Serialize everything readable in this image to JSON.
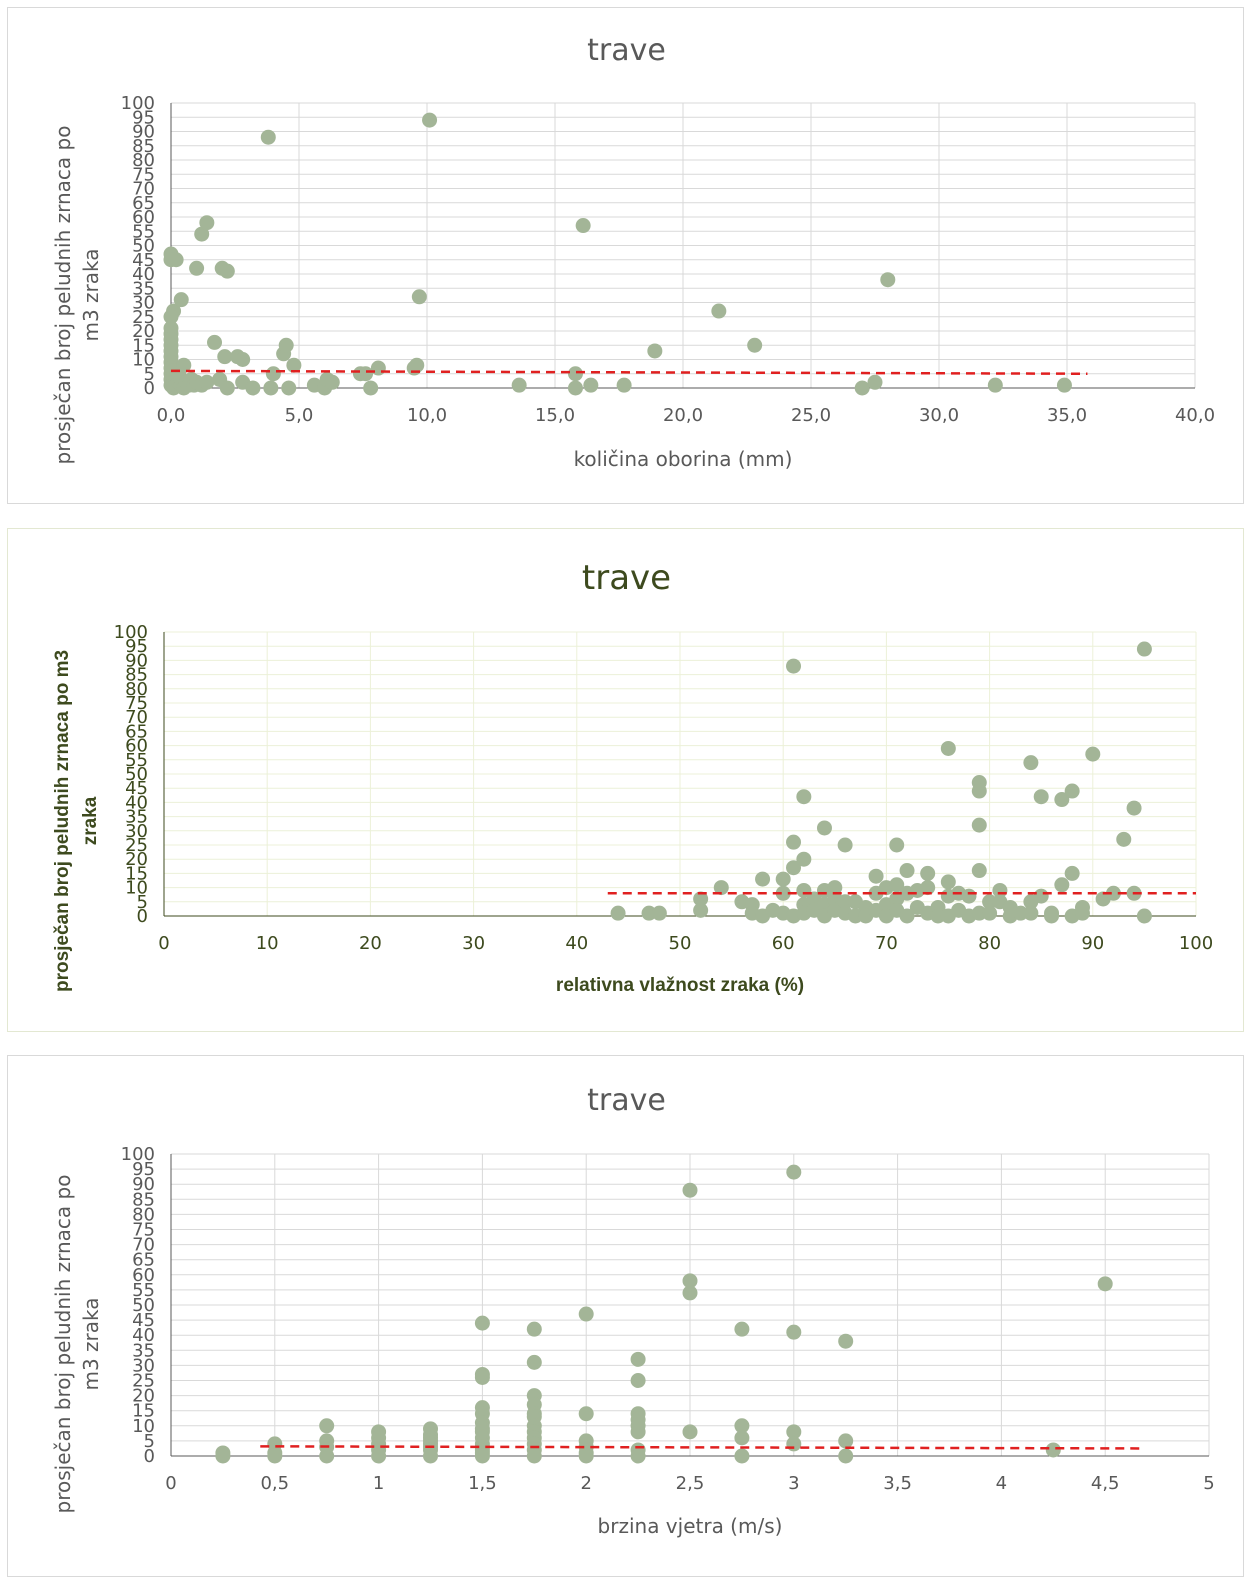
{
  "chart_data": [
    {
      "type": "scatter",
      "title": "trave",
      "xlabel": "količina oborina (mm)",
      "ylabel": "prosječan broj peludnih zrnaca po m3 zraka",
      "xlim": [
        0,
        40
      ],
      "ylim": [
        0,
        100
      ],
      "x_ticks": [
        "0,0",
        "5,0",
        "10,0",
        "15,0",
        "20,0",
        "25,0",
        "30,0",
        "35,0",
        "40,0"
      ],
      "y_ticks": [
        "0",
        "5",
        "10",
        "15",
        "20",
        "25",
        "30",
        "35",
        "40",
        "45",
        "50",
        "55",
        "60",
        "65",
        "70",
        "75",
        "80",
        "85",
        "90",
        "95",
        "100"
      ],
      "grid": true,
      "marker_color": "#a3b597",
      "trendline": {
        "style": "dashed",
        "color": "#e02020",
        "x": [
          0,
          35.8
        ],
        "y": [
          6.0,
          5.0
        ]
      },
      "points": [
        [
          0.0,
          47
        ],
        [
          0.0,
          45
        ],
        [
          0.2,
          45
        ],
        [
          0.1,
          27
        ],
        [
          0.0,
          25
        ],
        [
          0.0,
          21
        ],
        [
          0.0,
          19
        ],
        [
          0.0,
          17
        ],
        [
          0.0,
          15
        ],
        [
          0.0,
          13
        ],
        [
          0.0,
          11
        ],
        [
          0.0,
          9
        ],
        [
          0.0,
          7
        ],
        [
          0.0,
          5
        ],
        [
          0.0,
          3
        ],
        [
          0.0,
          1
        ],
        [
          0.1,
          6
        ],
        [
          0.1,
          4
        ],
        [
          0.1,
          2
        ],
        [
          0.1,
          0
        ],
        [
          0.2,
          3
        ],
        [
          0.2,
          1
        ],
        [
          0.3,
          5
        ],
        [
          0.3,
          2
        ],
        [
          0.4,
          1
        ],
        [
          0.4,
          3
        ],
        [
          0.5,
          0
        ],
        [
          0.5,
          8
        ],
        [
          0.6,
          2
        ],
        [
          0.7,
          1
        ],
        [
          0.8,
          3
        ],
        [
          0.9,
          1
        ],
        [
          1.0,
          2
        ],
        [
          1.2,
          1
        ],
        [
          1.4,
          2
        ],
        [
          0.4,
          31
        ],
        [
          1.0,
          42
        ],
        [
          1.2,
          54
        ],
        [
          1.4,
          58
        ],
        [
          1.7,
          16
        ],
        [
          2.0,
          42
        ],
        [
          2.1,
          11
        ],
        [
          2.2,
          41
        ],
        [
          1.9,
          3
        ],
        [
          2.2,
          0
        ],
        [
          2.6,
          11
        ],
        [
          2.8,
          10
        ],
        [
          2.8,
          2
        ],
        [
          3.2,
          0
        ],
        [
          3.8,
          88
        ],
        [
          3.9,
          0
        ],
        [
          4.0,
          5
        ],
        [
          4.4,
          12
        ],
        [
          4.5,
          15
        ],
        [
          4.6,
          0
        ],
        [
          4.8,
          8
        ],
        [
          5.6,
          1
        ],
        [
          6.0,
          0
        ],
        [
          6.1,
          3
        ],
        [
          6.3,
          2
        ],
        [
          7.4,
          5
        ],
        [
          7.6,
          5
        ],
        [
          7.8,
          0
        ],
        [
          8.1,
          7
        ],
        [
          9.5,
          7
        ],
        [
          9.6,
          8
        ],
        [
          9.7,
          32
        ],
        [
          10.1,
          94
        ],
        [
          13.6,
          1
        ],
        [
          15.8,
          5
        ],
        [
          15.8,
          0
        ],
        [
          16.1,
          57
        ],
        [
          16.4,
          1
        ],
        [
          17.7,
          1
        ],
        [
          18.9,
          13
        ],
        [
          21.4,
          27
        ],
        [
          22.8,
          15
        ],
        [
          27.0,
          0
        ],
        [
          27.5,
          2
        ],
        [
          28.0,
          38
        ],
        [
          32.2,
          1
        ],
        [
          34.9,
          1
        ]
      ]
    },
    {
      "type": "scatter",
      "title": "trave",
      "xlabel": "relativna vlažnost zraka (%)",
      "ylabel": "prosječan broj peludnih zrnaca po m3 zraka",
      "xlim": [
        0,
        100
      ],
      "ylim": [
        0,
        100
      ],
      "x_ticks": [
        "0",
        "10",
        "20",
        "30",
        "40",
        "50",
        "60",
        "70",
        "80",
        "90",
        "100"
      ],
      "y_ticks": [
        "0",
        "5",
        "10",
        "15",
        "20",
        "25",
        "30",
        "35",
        "40",
        "45",
        "50",
        "55",
        "60",
        "65",
        "70",
        "75",
        "80",
        "85",
        "90",
        "95",
        "100"
      ],
      "grid": true,
      "marker_color": "#a3b597",
      "trendline": {
        "style": "dashed",
        "color": "#e02020",
        "x": [
          43,
          100
        ],
        "y": [
          8.0,
          8.0
        ]
      },
      "points": [
        [
          44,
          1
        ],
        [
          47,
          1
        ],
        [
          48,
          1
        ],
        [
          52,
          6
        ],
        [
          52,
          2
        ],
        [
          54,
          10
        ],
        [
          56,
          5
        ],
        [
          57,
          4
        ],
        [
          57,
          1
        ],
        [
          58,
          0
        ],
        [
          58,
          13
        ],
        [
          59,
          2
        ],
        [
          60,
          13
        ],
        [
          60,
          8
        ],
        [
          60,
          1
        ],
        [
          61,
          88
        ],
        [
          61,
          26
        ],
        [
          61,
          17
        ],
        [
          61,
          0
        ],
        [
          62,
          42
        ],
        [
          62,
          20
        ],
        [
          62,
          9
        ],
        [
          62,
          4
        ],
        [
          62,
          1
        ],
        [
          63,
          6
        ],
        [
          63,
          2
        ],
        [
          64,
          31
        ],
        [
          64,
          9
        ],
        [
          64,
          4
        ],
        [
          64,
          0
        ],
        [
          65,
          10
        ],
        [
          65,
          6
        ],
        [
          65,
          2
        ],
        [
          66,
          25
        ],
        [
          66,
          5
        ],
        [
          66,
          1
        ],
        [
          67,
          5
        ],
        [
          67,
          0
        ],
        [
          68,
          3
        ],
        [
          68,
          0
        ],
        [
          69,
          14
        ],
        [
          69,
          8
        ],
        [
          69,
          2
        ],
        [
          70,
          10
        ],
        [
          70,
          4
        ],
        [
          70,
          0
        ],
        [
          71,
          25
        ],
        [
          71,
          11
        ],
        [
          71,
          6
        ],
        [
          71,
          2
        ],
        [
          72,
          16
        ],
        [
          72,
          8
        ],
        [
          72,
          0
        ],
        [
          73,
          9
        ],
        [
          73,
          3
        ],
        [
          74,
          15
        ],
        [
          74,
          10
        ],
        [
          74,
          1
        ],
        [
          75,
          3
        ],
        [
          75,
          0
        ],
        [
          76,
          59
        ],
        [
          76,
          12
        ],
        [
          76,
          7
        ],
        [
          76,
          0
        ],
        [
          77,
          8
        ],
        [
          77,
          2
        ],
        [
          78,
          7
        ],
        [
          78,
          0
        ],
        [
          79,
          47
        ],
        [
          79,
          44
        ],
        [
          79,
          32
        ],
        [
          79,
          16
        ],
        [
          79,
          1
        ],
        [
          80,
          5
        ],
        [
          80,
          1
        ],
        [
          81,
          9
        ],
        [
          81,
          5
        ],
        [
          82,
          3
        ],
        [
          82,
          0
        ],
        [
          83,
          1
        ],
        [
          84,
          54
        ],
        [
          84,
          5
        ],
        [
          84,
          1
        ],
        [
          85,
          42
        ],
        [
          85,
          7
        ],
        [
          86,
          1
        ],
        [
          86,
          0
        ],
        [
          87,
          41
        ],
        [
          87,
          11
        ],
        [
          88,
          44
        ],
        [
          88,
          15
        ],
        [
          88,
          0
        ],
        [
          89,
          3
        ],
        [
          89,
          1
        ],
        [
          90,
          57
        ],
        [
          91,
          6
        ],
        [
          92,
          8
        ],
        [
          93,
          27
        ],
        [
          94,
          38
        ],
        [
          94,
          8
        ],
        [
          95,
          94
        ],
        [
          95,
          0
        ]
      ]
    },
    {
      "type": "scatter",
      "title": "trave",
      "xlabel": "brzina vjetra (m/s)",
      "ylabel": "prosječan broj peludnih zrnaca po m3 zraka",
      "xlim": [
        0,
        5
      ],
      "ylim": [
        0,
        100
      ],
      "x_ticks": [
        "0",
        "0,5",
        "1",
        "1,5",
        "2",
        "2,5",
        "3",
        "3,5",
        "4",
        "4,5",
        "5"
      ],
      "y_ticks": [
        "0",
        "5",
        "10",
        "15",
        "20",
        "25",
        "30",
        "35",
        "40",
        "45",
        "50",
        "55",
        "60",
        "65",
        "70",
        "75",
        "80",
        "85",
        "90",
        "95",
        "100"
      ],
      "grid": true,
      "marker_color": "#a3b597",
      "trendline": {
        "style": "dashed",
        "color": "#e02020",
        "x": [
          0.43,
          4.68
        ],
        "y": [
          3.2,
          2.5
        ]
      },
      "points": [
        [
          0.25,
          1
        ],
        [
          0.25,
          0
        ],
        [
          0.5,
          4
        ],
        [
          0.5,
          1
        ],
        [
          0.5,
          0
        ],
        [
          0.75,
          10
        ],
        [
          0.75,
          5
        ],
        [
          0.75,
          3
        ],
        [
          0.75,
          0
        ],
        [
          1.0,
          8
        ],
        [
          1.0,
          6
        ],
        [
          1.0,
          4
        ],
        [
          1.0,
          2
        ],
        [
          1.0,
          0
        ],
        [
          1.25,
          9
        ],
        [
          1.25,
          7
        ],
        [
          1.25,
          6
        ],
        [
          1.25,
          5
        ],
        [
          1.25,
          4
        ],
        [
          1.25,
          3
        ],
        [
          1.25,
          2
        ],
        [
          1.25,
          0
        ],
        [
          1.5,
          44
        ],
        [
          1.5,
          27
        ],
        [
          1.5,
          26
        ],
        [
          1.5,
          16
        ],
        [
          1.5,
          14
        ],
        [
          1.5,
          11
        ],
        [
          1.5,
          9
        ],
        [
          1.5,
          8
        ],
        [
          1.5,
          6
        ],
        [
          1.5,
          4
        ],
        [
          1.5,
          3
        ],
        [
          1.5,
          2
        ],
        [
          1.5,
          1
        ],
        [
          1.5,
          0
        ],
        [
          1.75,
          42
        ],
        [
          1.75,
          31
        ],
        [
          1.75,
          20
        ],
        [
          1.75,
          17
        ],
        [
          1.75,
          14
        ],
        [
          1.75,
          13
        ],
        [
          1.75,
          10
        ],
        [
          1.75,
          8
        ],
        [
          1.75,
          6
        ],
        [
          1.75,
          4
        ],
        [
          1.75,
          2
        ],
        [
          1.75,
          0
        ],
        [
          2.0,
          47
        ],
        [
          2.0,
          14
        ],
        [
          2.0,
          5
        ],
        [
          2.0,
          3
        ],
        [
          2.0,
          1
        ],
        [
          2.0,
          0
        ],
        [
          2.25,
          32
        ],
        [
          2.25,
          25
        ],
        [
          2.25,
          14
        ],
        [
          2.25,
          12
        ],
        [
          2.25,
          10
        ],
        [
          2.25,
          8
        ],
        [
          2.25,
          2
        ],
        [
          2.25,
          0
        ],
        [
          2.5,
          88
        ],
        [
          2.5,
          58
        ],
        [
          2.5,
          54
        ],
        [
          2.5,
          8
        ],
        [
          2.75,
          42
        ],
        [
          2.75,
          10
        ],
        [
          2.75,
          6
        ],
        [
          2.75,
          0
        ],
        [
          3.0,
          94
        ],
        [
          3.0,
          41
        ],
        [
          3.0,
          8
        ],
        [
          3.0,
          4
        ],
        [
          3.25,
          38
        ],
        [
          3.25,
          5
        ],
        [
          3.25,
          0
        ],
        [
          4.25,
          2
        ],
        [
          4.5,
          57
        ]
      ]
    }
  ]
}
